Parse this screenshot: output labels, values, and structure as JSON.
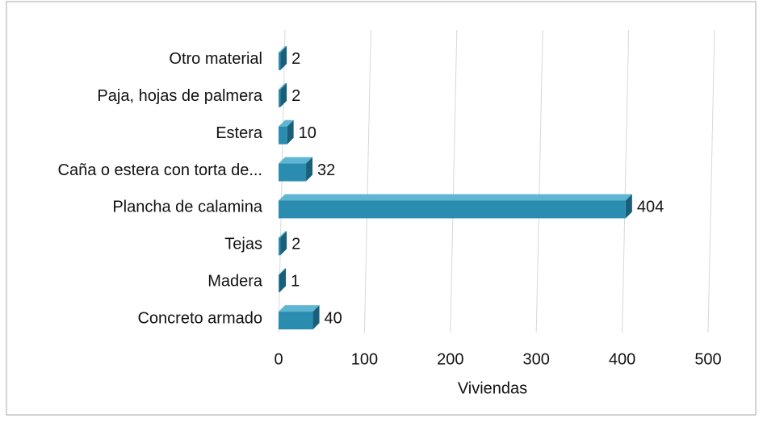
{
  "chart_data": {
    "type": "bar",
    "orientation": "horizontal",
    "categories": [
      "Otro material",
      "Paja, hojas de palmera",
      "Estera",
      "Caña o estera con torta de...",
      "Plancha de calamina",
      "Tejas",
      "Madera",
      "Concreto armado"
    ],
    "values": [
      2,
      2,
      10,
      32,
      404,
      2,
      1,
      40
    ],
    "color": "#2a8db0",
    "xlabel": "Viviendas",
    "xlim": [
      0,
      500
    ],
    "xticks": [
      0,
      100,
      200,
      300,
      400,
      500
    ],
    "grid": true
  }
}
